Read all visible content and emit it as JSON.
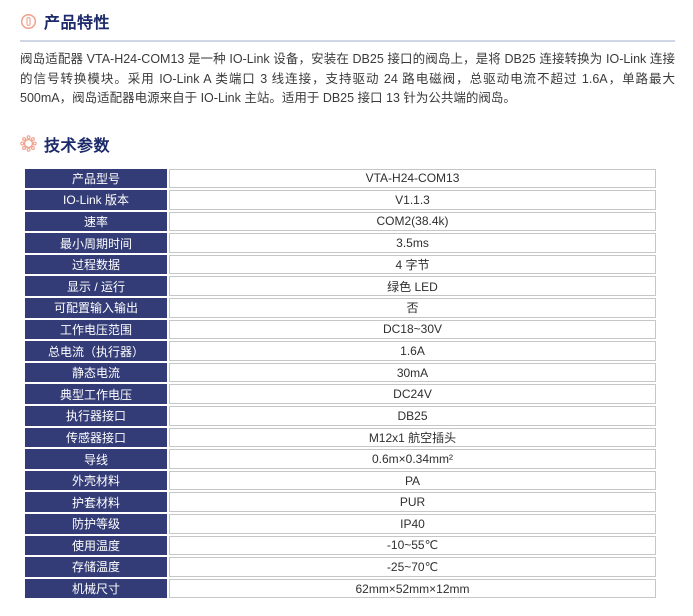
{
  "colors": {
    "accent_navy": "#333c76",
    "header_text": "#1c2a69",
    "icon_salmon": "#f0a38e",
    "divider": "#cfd6e6",
    "cell_border": "#c6c6c6"
  },
  "sections": {
    "features": {
      "title": "产品特性",
      "icon": "circle-badge-icon",
      "body": "阀岛适配器 VTA-H24-COM13 是一种 IO-Link 设备，安装在 DB25 接口的阀岛上，是将 DB25 连接转换为 IO-Link 连接的信号转换模块。采用 IO-Link A 类端口 3 线连接，支持驱动 24 路电磁阀，总驱动电流不超过 1.6A，单路最大 500mA，阀岛适配器电源来自于 IO-Link 主站。适用于 DB25 接口 13 针为公共端的阀岛。"
    },
    "specs": {
      "title": "技术参数",
      "icon": "gear-icon",
      "rows": [
        {
          "label": "产品型号",
          "value": "VTA-H24-COM13"
        },
        {
          "label": "IO-Link 版本",
          "value": "V1.1.3"
        },
        {
          "label": "速率",
          "value": "COM2(38.4k)"
        },
        {
          "label": "最小周期时间",
          "value": "3.5ms"
        },
        {
          "label": "过程数据",
          "value": "4 字节"
        },
        {
          "label": "显示 / 运行",
          "value": "绿色 LED"
        },
        {
          "label": "可配置输入输出",
          "value": "否"
        },
        {
          "label": "工作电压范围",
          "value": "DC18~30V"
        },
        {
          "label": "总电流（执行器）",
          "value": "1.6A"
        },
        {
          "label": "静态电流",
          "value": "30mA"
        },
        {
          "label": "典型工作电压",
          "value": "DC24V"
        },
        {
          "label": "执行器接口",
          "value": "DB25"
        },
        {
          "label": "传感器接口",
          "value": "M12x1 航空插头"
        },
        {
          "label": "导线",
          "value": "0.6m×0.34mm²"
        },
        {
          "label": "外壳材料",
          "value": "PA"
        },
        {
          "label": "护套材料",
          "value": "PUR"
        },
        {
          "label": "防护等级",
          "value": "IP40"
        },
        {
          "label": "使用温度",
          "value": "-10~55℃"
        },
        {
          "label": "存储温度",
          "value": "-25~70℃"
        },
        {
          "label": "机械尺寸",
          "value": "62mm×52mm×12mm"
        }
      ]
    }
  }
}
